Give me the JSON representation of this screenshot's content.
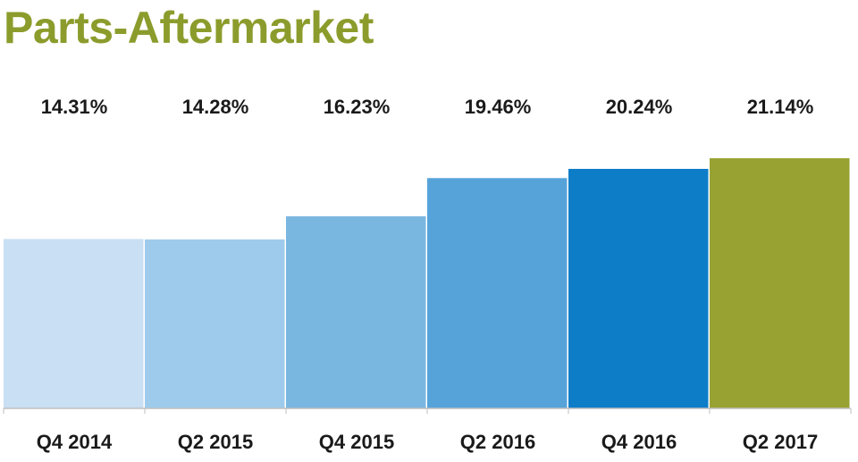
{
  "chart_data": {
    "type": "bar",
    "title": "Parts-Aftermarket",
    "categories": [
      "Q4 2014",
      "Q2 2015",
      "Q4 2015",
      "Q2 2016",
      "Q4 2016",
      "Q2 2017"
    ],
    "values": [
      14.31,
      14.28,
      16.23,
      19.46,
      20.24,
      21.14
    ],
    "value_labels": [
      "14.31%",
      "14.28%",
      "16.23%",
      "19.46%",
      "20.24%",
      "21.14%"
    ],
    "bar_colors": [
      "#c9dff3",
      "#9ecbeb",
      "#7ab7e0",
      "#56a3da",
      "#0e7dc8",
      "#98a233"
    ],
    "title_color": "#8c9c2c",
    "ylim": [
      0,
      21.9
    ],
    "grid": false,
    "legend": "none",
    "xlabel": "",
    "ylabel": ""
  }
}
